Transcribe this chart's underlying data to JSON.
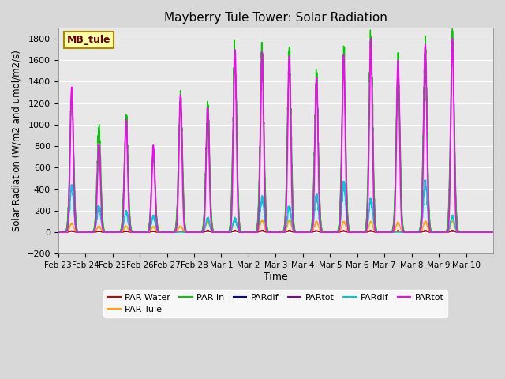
{
  "title": "Mayberry Tule Tower: Solar Radiation",
  "xlabel": "Time",
  "ylabel": "Solar Radiation (W/m2 and umol/m2/s)",
  "ylim": [
    -200,
    1900
  ],
  "xlim": [
    0,
    16
  ],
  "background_color": "#d8d8d8",
  "plot_bg_color": "#e8e8e8",
  "grid_color": "white",
  "station_label": "MB_tule",
  "xtick_labels": [
    "Feb 23",
    "Feb 24",
    "Feb 25",
    "Feb 26",
    "Feb 27",
    "Feb 28",
    "Mar 1",
    "Mar 2",
    "Mar 3",
    "Mar 4",
    "Mar 5",
    "Mar 6",
    "Mar 7",
    "Mar 8",
    "Mar 9",
    "Mar 10"
  ],
  "legend_entries": [
    {
      "label": "PAR Water",
      "color": "#cc0000",
      "lw": 1.5
    },
    {
      "label": "PAR Tule",
      "color": "#ffa500",
      "lw": 1.5
    },
    {
      "label": "PAR In",
      "color": "#00cc00",
      "lw": 1.5
    },
    {
      "label": "PARdif",
      "color": "#0000cc",
      "lw": 1.5
    },
    {
      "label": "PARtot",
      "color": "#8800aa",
      "lw": 1.5
    },
    {
      "label": "PARdif",
      "color": "#00cccc",
      "lw": 1.5
    },
    {
      "label": "PARtot",
      "color": "#ff00ff",
      "lw": 1.5
    }
  ],
  "day_peaks": [
    1350,
    820,
    1050,
    810,
    1280,
    1160,
    1700,
    1680,
    1640,
    1440,
    1650,
    1800,
    1600,
    1750,
    1800,
    0
  ],
  "green_peaks": [
    1300,
    960,
    1050,
    700,
    1280,
    1160,
    1700,
    1680,
    1640,
    1440,
    1650,
    1800,
    1590,
    1740,
    1800,
    0
  ],
  "cyan_peaks": [
    420,
    240,
    190,
    150,
    0,
    130,
    130,
    320,
    230,
    350,
    450,
    300,
    0,
    460,
    150,
    0
  ],
  "orange_peaks": [
    80,
    55,
    55,
    50,
    55,
    100,
    110,
    110,
    110,
    100,
    95,
    95,
    90,
    100,
    100,
    0
  ]
}
